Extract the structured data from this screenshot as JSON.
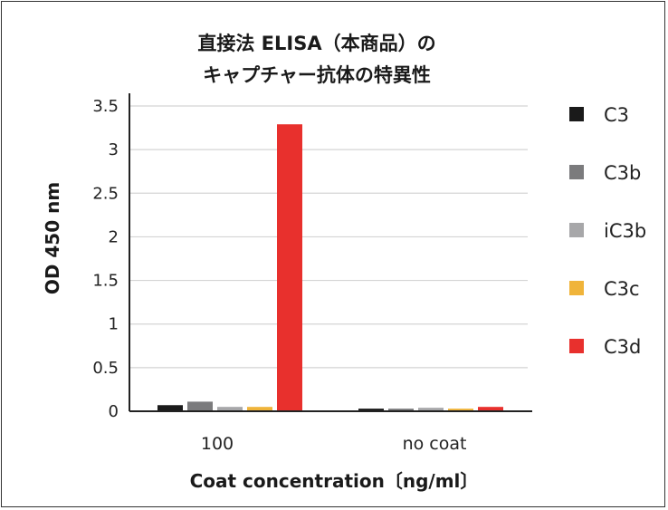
{
  "chart_data": {
    "type": "bar",
    "title_line1": "直接法 ELISA（本商品）の",
    "title_line2": "キャプチャー抗体の特異性",
    "xlabel": "Coat concentration〔ng/ml〕",
    "ylabel": "OD 450 nm",
    "ylim": [
      0,
      3.5
    ],
    "yticks": [
      "0",
      "0.5",
      "1",
      "1.5",
      "2",
      "2.5",
      "3",
      "3.5"
    ],
    "grid": true,
    "legend_position": "right",
    "categories": [
      "100",
      "no coat"
    ],
    "series": [
      {
        "name": "C3",
        "color": "#1a1a1a",
        "values": [
          0.07,
          0.03
        ]
      },
      {
        "name": "C3b",
        "color": "#7b7b7d",
        "values": [
          0.11,
          0.03
        ]
      },
      {
        "name": "iC3b",
        "color": "#a7a7a9",
        "values": [
          0.05,
          0.04
        ]
      },
      {
        "name": "C3c",
        "color": "#f0b43a",
        "values": [
          0.05,
          0.03
        ]
      },
      {
        "name": "C3d",
        "color": "#e8302d",
        "values": [
          3.29,
          0.05
        ]
      }
    ]
  }
}
